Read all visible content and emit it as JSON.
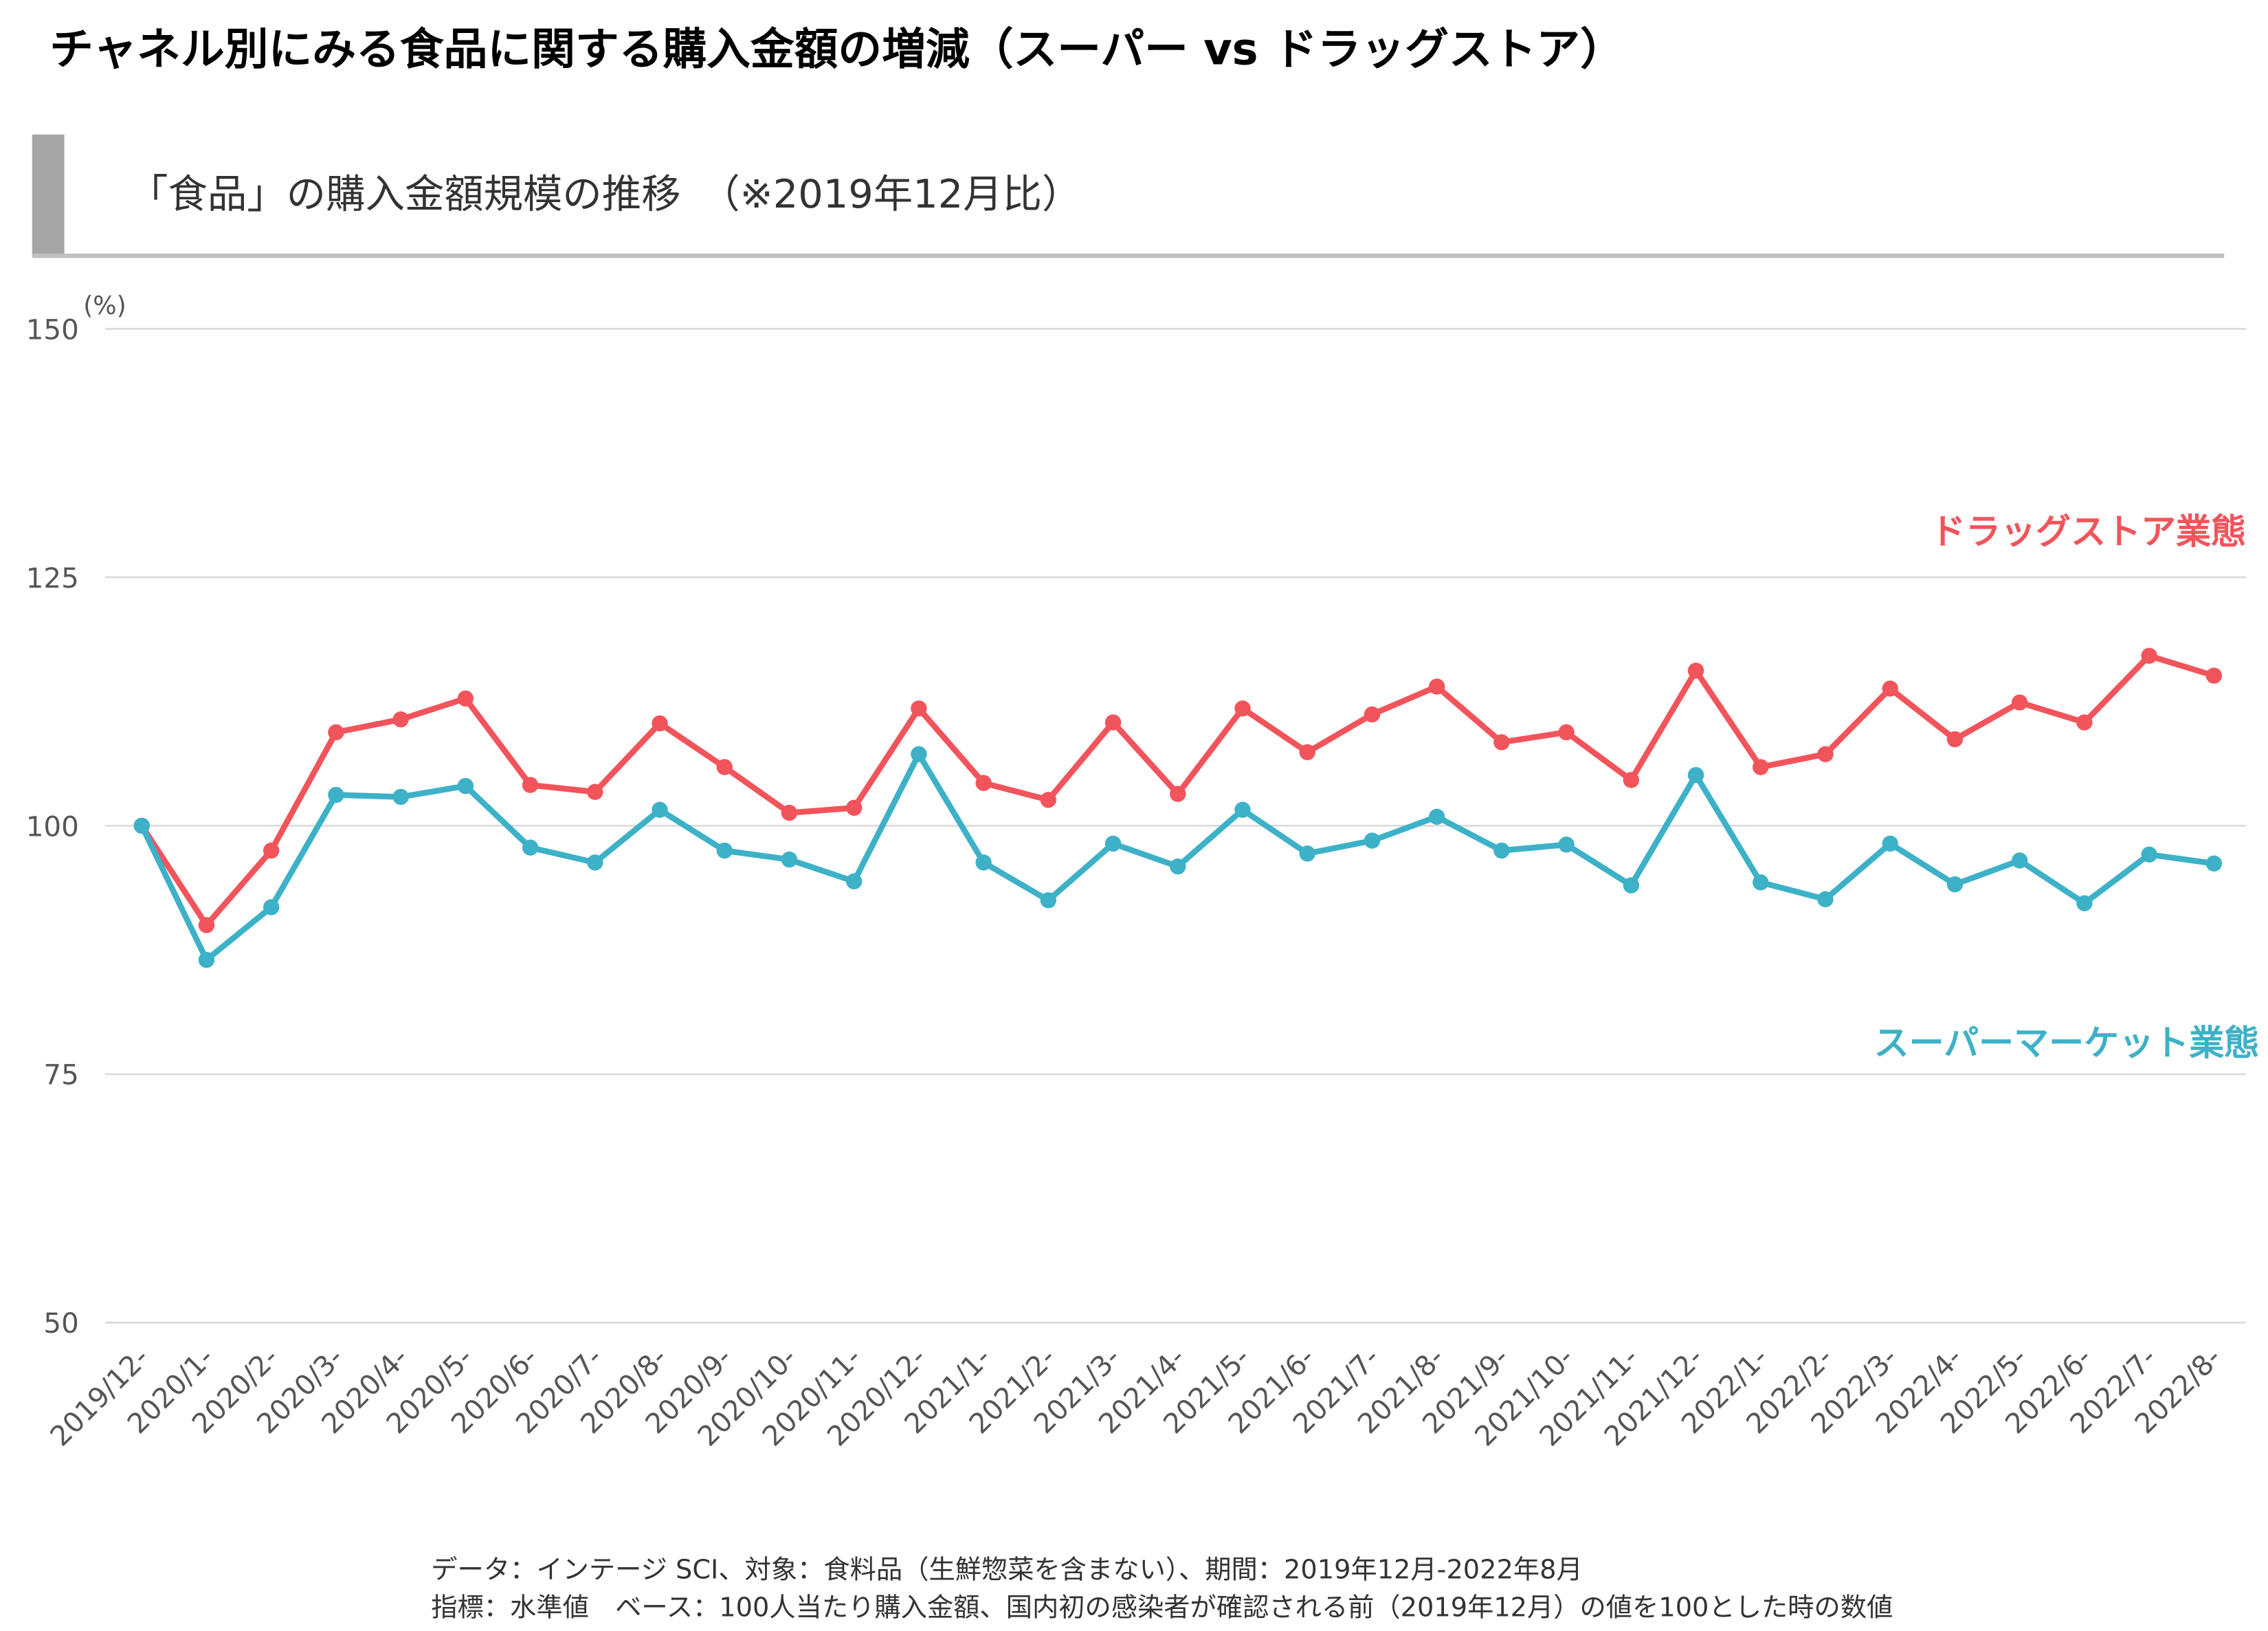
{
  "chart_data": {
    "type": "line",
    "title": "チャネル別にみる食品に関する購入金額の増減（スーパー vs ドラッグストア）",
    "subtitle": "「食品」の購入金額規模の推移　（※2019年12月比）",
    "y_unit": "(%)",
    "categories": [
      "2019/12-",
      "2020/1-",
      "2020/2-",
      "2020/3-",
      "2020/4-",
      "2020/5-",
      "2020/6-",
      "2020/7-",
      "2020/8-",
      "2020/9-",
      "2020/10-",
      "2020/11-",
      "2020/12-",
      "2021/1-",
      "2021/2-",
      "2021/3-",
      "2021/4-",
      "2021/5-",
      "2021/6-",
      "2021/7-",
      "2021/8-",
      "2021/9-",
      "2021/10-",
      "2021/11-",
      "2021/12-",
      "2022/1-",
      "2022/2-",
      "2022/3-",
      "2022/4-",
      "2022/5-",
      "2022/6-",
      "2022/7-",
      "2022/8-"
    ],
    "series": [
      {
        "name": "ドラッグストア業態",
        "color": "#f2545b",
        "values": [
          100,
          90,
          97.5,
          109.4,
          110.7,
          112.8,
          104.1,
          103.4,
          110.3,
          105.9,
          101.3,
          101.8,
          111.8,
          104.3,
          102.6,
          110.4,
          103.2,
          111.8,
          107.4,
          111.2,
          114.0,
          108.4,
          109.4,
          104.6,
          115.6,
          105.9,
          107.2,
          113.8,
          108.7,
          112.4,
          110.4,
          117.1,
          115.1
        ]
      },
      {
        "name": "スーパーマーケット業態",
        "color": "#3db1c8",
        "values": [
          100,
          86.5,
          91.8,
          103.1,
          102.9,
          104.0,
          97.8,
          96.3,
          101.6,
          97.5,
          96.6,
          94.4,
          107.2,
          96.3,
          92.5,
          98.2,
          95.9,
          101.6,
          97.2,
          98.5,
          100.9,
          97.5,
          98.1,
          94.0,
          105.1,
          94.3,
          92.6,
          98.2,
          94.1,
          96.5,
          92.2,
          97.1,
          96.2
        ]
      }
    ],
    "ylim": [
      50,
      150
    ],
    "yticks": [
      50,
      75,
      100,
      125,
      150
    ],
    "grid": true,
    "notes": [
      "データ：インテージ SCI、対象：食料品（生鮮惣菜を含まない）、期間：2019年12月-2022年8月",
      "指標：水準値　ベース：100人当たり購入金額、国内初の感染者が確認される前（2019年12月）の値を100とした時の数値"
    ]
  }
}
